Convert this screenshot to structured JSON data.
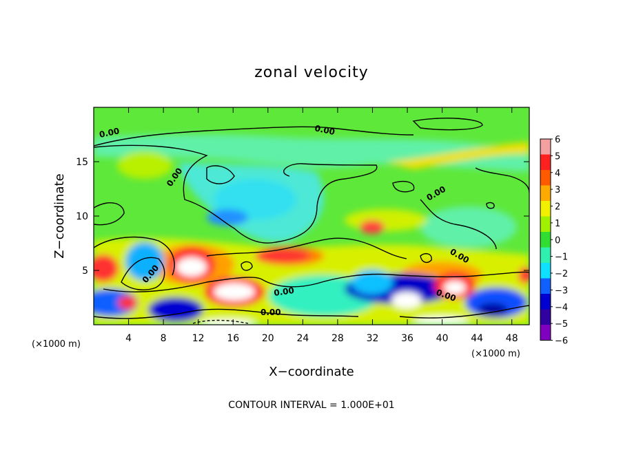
{
  "chart_data": {
    "type": "heatmap",
    "title": "zonal velocity",
    "xlabel": "X−coordinate",
    "ylabel": "Z−coordinate",
    "x_unit_label": "(×1000 m)",
    "x_unit_label_right": "(×1000 m)",
    "xlim": [
      0,
      50
    ],
    "ylim": [
      0,
      20
    ],
    "x_ticks": [
      4,
      8,
      12,
      16,
      20,
      24,
      28,
      32,
      36,
      40,
      44,
      48
    ],
    "y_ticks": [
      5,
      10,
      15
    ],
    "colorbar": {
      "range": [
        -6,
        6
      ],
      "labels": [
        "6",
        "5",
        "4",
        "3",
        "2",
        "1",
        "0",
        "−1",
        "−2",
        "−3",
        "−4",
        "−5",
        "−6"
      ],
      "colors": [
        "#f4a0a0",
        "#ff2020",
        "#ff5a00",
        "#ffaa00",
        "#f0f000",
        "#a0f000",
        "#30dd30",
        "#30f0b0",
        "#10e0ff",
        "#1060ff",
        "#0000d0",
        "#3000a0",
        "#8000c0"
      ]
    },
    "contour_label": "0.00",
    "contour_interval_text": "CONTOUR INTERVAL =  1.000E+01",
    "features": [
      {
        "kind": "positive",
        "x": 1,
        "z": 5.2,
        "value": 5
      },
      {
        "kind": "negative",
        "x": 4,
        "z": 5.5,
        "value": -3
      },
      {
        "kind": "positive",
        "x": 3.5,
        "z": 1.8,
        "value": 5
      },
      {
        "kind": "positive",
        "x": 11,
        "z": 5.5,
        "value": 6
      },
      {
        "kind": "positive",
        "x": 16.5,
        "z": 3.2,
        "value": 6
      },
      {
        "kind": "positive",
        "x": 23,
        "z": 6.2,
        "value": 4
      },
      {
        "kind": "negative",
        "x": 9.5,
        "z": 1.8,
        "value": -5
      },
      {
        "kind": "negative",
        "x": 34,
        "z": 3.5,
        "value": -5
      },
      {
        "kind": "positive",
        "x": 36,
        "z": 2.0,
        "value": 6
      },
      {
        "kind": "positive",
        "x": 41,
        "z": 3.2,
        "value": 5
      },
      {
        "kind": "negative",
        "x": 44.5,
        "z": 2.2,
        "value": -4
      },
      {
        "kind": "negative",
        "x": 17,
        "z": 9.8,
        "value": -3
      },
      {
        "kind": "positive",
        "x": 46,
        "z": 16.0,
        "value": 2
      },
      {
        "kind": "negative",
        "x": 22,
        "z": 13.5,
        "value": -1
      }
    ]
  }
}
